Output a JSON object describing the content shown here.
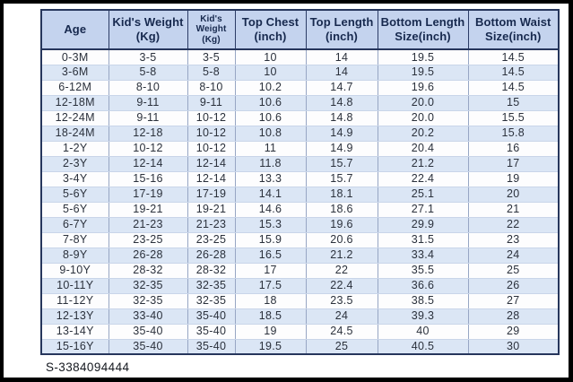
{
  "footer": {
    "code": "S-3384094444"
  },
  "chart_data": {
    "type": "table",
    "columns": [
      {
        "label": "Age",
        "lines": [
          "Age"
        ]
      },
      {
        "label": "Kid's Weight (Kg)",
        "lines": [
          "Kid's Weight",
          "(Kg)"
        ]
      },
      {
        "label": "Kid's Weight (Kg)",
        "lines": [
          "Kid's",
          "Weight",
          "(Kg)"
        ]
      },
      {
        "label": "Top Chest (inch)",
        "lines": [
          "Top Chest",
          "(inch)"
        ]
      },
      {
        "label": "Top Length (inch)",
        "lines": [
          "Top Length",
          "(inch)"
        ]
      },
      {
        "label": "Bottom Length Size(inch)",
        "lines": [
          "Bottom Length",
          "Size(inch)"
        ]
      },
      {
        "label": "Bottom Waist Size(inch)",
        "lines": [
          "Bottom Waist",
          "Size(inch)"
        ]
      }
    ],
    "rows": [
      [
        "0-3M",
        "3-5",
        "3-5",
        "10",
        "14",
        "19.5",
        "14.5"
      ],
      [
        "3-6M",
        "5-8",
        "5-8",
        "10",
        "14",
        "19.5",
        "14.5"
      ],
      [
        "6-12M",
        "8-10",
        "8-10",
        "10.2",
        "14.7",
        "19.6",
        "14.5"
      ],
      [
        "12-18M",
        "9-11",
        "9-11",
        "10.6",
        "14.8",
        "20.0",
        "15"
      ],
      [
        "12-24M",
        "9-11",
        "10-12",
        "10.6",
        "14.8",
        "20.0",
        "15.5"
      ],
      [
        "18-24M",
        "12-18",
        "10-12",
        "10.8",
        "14.9",
        "20.2",
        "15.8"
      ],
      [
        "1-2Y",
        "10-12",
        "10-12",
        "11",
        "14.9",
        "20.4",
        "16"
      ],
      [
        "2-3Y",
        "12-14",
        "12-14",
        "11.8",
        "15.7",
        "21.2",
        "17"
      ],
      [
        "3-4Y",
        "15-16",
        "12-14",
        "13.3",
        "15.7",
        "22.4",
        "19"
      ],
      [
        "5-6Y",
        "17-19",
        "17-19",
        "14.1",
        "18.1",
        "25.1",
        "20"
      ],
      [
        "5-6Y",
        "19-21",
        "19-21",
        "14.6",
        "18.6",
        "27.1",
        "21"
      ],
      [
        "6-7Y",
        "21-23",
        "21-23",
        "15.3",
        "19.6",
        "29.9",
        "22"
      ],
      [
        "7-8Y",
        "23-25",
        "23-25",
        "15.9",
        "20.6",
        "31.5",
        "23"
      ],
      [
        "8-9Y",
        "26-28",
        "26-28",
        "16.5",
        "21.2",
        "33.4",
        "24"
      ],
      [
        "9-10Y",
        "28-32",
        "28-32",
        "17",
        "22",
        "35.5",
        "25"
      ],
      [
        "10-11Y",
        "32-35",
        "32-35",
        "17.5",
        "22.4",
        "36.6",
        "26"
      ],
      [
        "11-12Y",
        "32-35",
        "32-35",
        "18",
        "23.5",
        "38.5",
        "27"
      ],
      [
        "12-13Y",
        "33-40",
        "35-40",
        "18.5",
        "24",
        "39.3",
        "28"
      ],
      [
        "13-14Y",
        "35-40",
        "35-40",
        "19",
        "24.5",
        "40",
        "29"
      ],
      [
        "15-16Y",
        "35-40",
        "35-40",
        "19.5",
        "25",
        "40.5",
        "30"
      ]
    ],
    "layout_hints": {
      "header_bg": "#c4d3ee",
      "header_text": "#17294e",
      "row_band_even": "#dbe6f5",
      "row_band_odd": "#fdfdfe",
      "table_border": "#26365c",
      "frame": "#000000"
    }
  }
}
